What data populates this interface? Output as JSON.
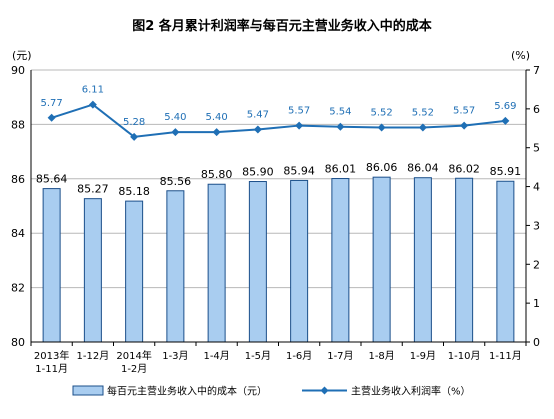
{
  "chart_data": {
    "type": "bar",
    "title": "图2  各月累计利润率与每百元主营业务收入中的成本",
    "left_unit": "(元)",
    "right_unit": "(%)",
    "categories": [
      [
        "2013年",
        "1-11月"
      ],
      [
        "1-12月"
      ],
      [
        "2014年",
        "1-2月"
      ],
      [
        "1-3月"
      ],
      [
        "1-4月"
      ],
      [
        "1-5月"
      ],
      [
        "1-6月"
      ],
      [
        "1-7月"
      ],
      [
        "1-8月"
      ],
      [
        "1-9月"
      ],
      [
        "1-10月"
      ],
      [
        "1-11月"
      ]
    ],
    "ylim": [
      80,
      90
    ],
    "yticks": [
      "80",
      "82",
      "84",
      "86",
      "88",
      "90"
    ],
    "y2lim": [
      0,
      7
    ],
    "y2ticks": [
      "0",
      "1",
      "2",
      "3",
      "4",
      "5",
      "6",
      "7"
    ],
    "series": [
      {
        "name": "每百元主营业务收入中的成本（元）",
        "type": "bar",
        "axis": "left",
        "values": [
          85.64,
          85.27,
          85.18,
          85.56,
          85.8,
          85.9,
          85.94,
          86.01,
          86.06,
          86.04,
          86.02,
          85.91
        ],
        "labels": [
          "85.64",
          "85.27",
          "85.18",
          "85.56",
          "85.80",
          "85.90",
          "85.94",
          "86.01",
          "86.06",
          "86.04",
          "86.02",
          "85.91"
        ]
      },
      {
        "name": "主营业务收入利润率（%）",
        "type": "line",
        "axis": "right",
        "values": [
          5.77,
          6.11,
          5.28,
          5.4,
          5.4,
          5.47,
          5.57,
          5.54,
          5.52,
          5.52,
          5.57,
          5.69
        ],
        "labels": [
          "5.77",
          "6.11",
          "5.28",
          "5.40",
          "5.40",
          "5.47",
          "5.57",
          "5.54",
          "5.52",
          "5.52",
          "5.57",
          "5.69"
        ]
      }
    ],
    "colors": {
      "bar_fill": "#a9cdf0",
      "bar_stroke": "#1b4f8a",
      "line": "#1f6fb5",
      "line_label": "#1f6fb5"
    }
  }
}
